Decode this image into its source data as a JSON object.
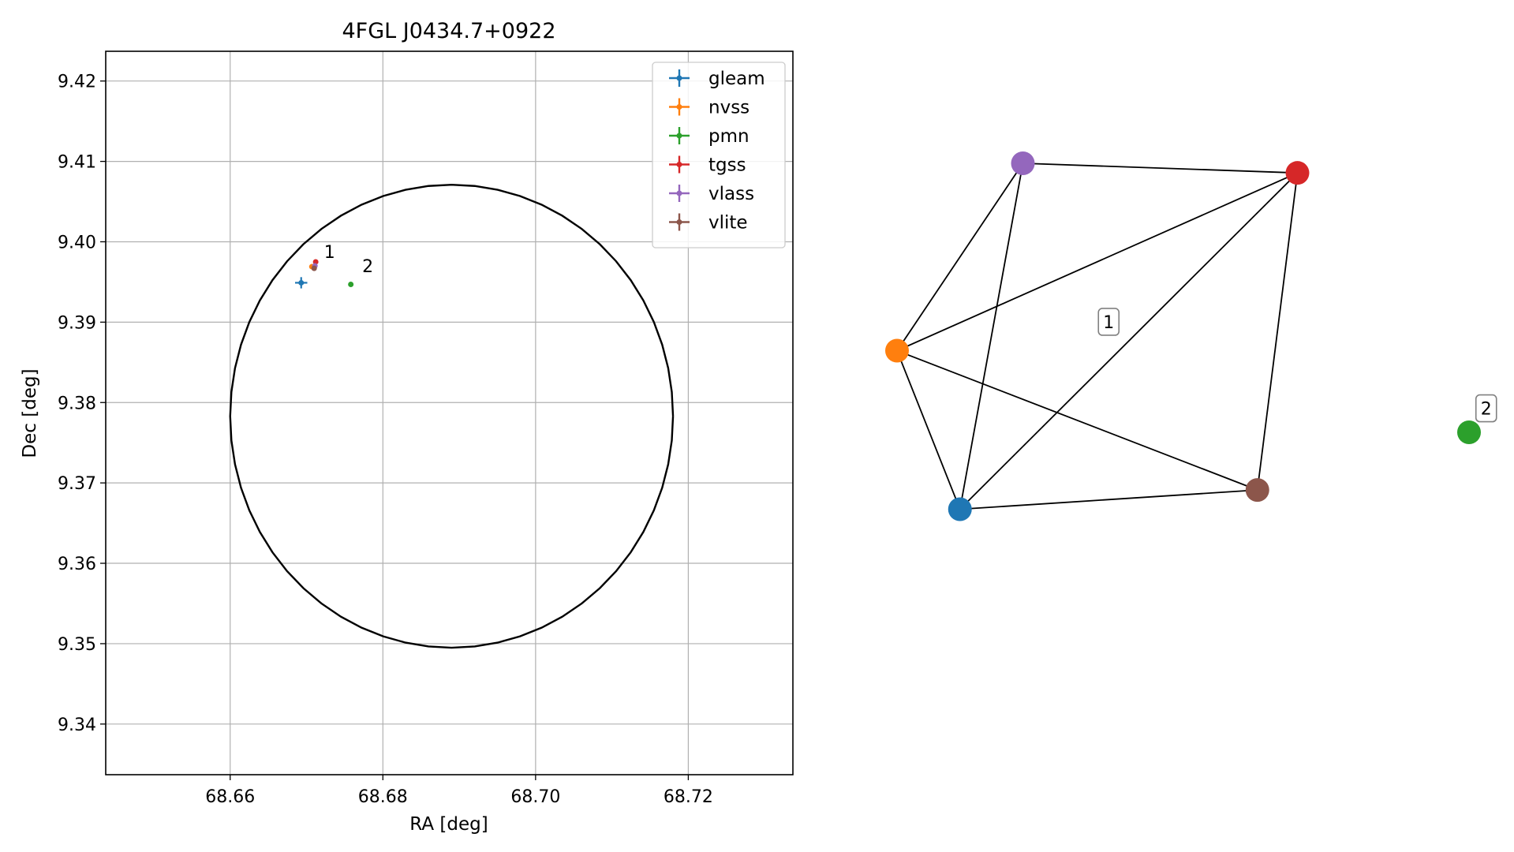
{
  "chart_data": [
    {
      "type": "scatter",
      "title": "4FGL J0434.7+0922",
      "xlabel": "RA [deg]",
      "ylabel": "Dec [deg]",
      "xlim": [
        68.6437,
        68.7337
      ],
      "ylim": [
        9.3337,
        9.4237
      ],
      "xticks": [
        68.66,
        68.68,
        68.7,
        68.72
      ],
      "yticks": [
        9.34,
        9.35,
        9.36,
        9.37,
        9.38,
        9.39,
        9.4,
        9.41,
        9.42
      ],
      "xtick_labels": [
        "68.66",
        "68.68",
        "68.70",
        "68.72"
      ],
      "ytick_labels": [
        "9.34",
        "9.35",
        "9.36",
        "9.37",
        "9.38",
        "9.39",
        "9.40",
        "9.41",
        "9.42"
      ],
      "grid": true,
      "legend_position": "upper right",
      "error_ellipse": {
        "ra_center": 68.689,
        "dec_center": 9.3783,
        "ra_semi": 0.029,
        "dec_semi": 0.0288,
        "color": "#000000"
      },
      "series": [
        {
          "name": "gleam",
          "color": "#1f77b4",
          "ra": 68.6693,
          "dec": 9.3949,
          "ra_err": 0.0008,
          "dec_err": 0.0007
        },
        {
          "name": "nvss",
          "color": "#ff7f0e",
          "ra": 68.6707,
          "dec": 9.3969,
          "ra_err": 0.0001,
          "dec_err": 0.0001
        },
        {
          "name": "pmn",
          "color": "#2ca02c",
          "ra": 68.6758,
          "dec": 9.3947,
          "ra_err": 0.0002,
          "dec_err": 0.0002
        },
        {
          "name": "tgss",
          "color": "#d62728",
          "ra": 68.6712,
          "dec": 9.3975,
          "ra_err": 0.0003,
          "dec_err": 0.0003
        },
        {
          "name": "vlass",
          "color": "#9467bd",
          "ra": 68.6711,
          "dec": 9.397,
          "ra_err": 0.0001,
          "dec_err": 0.0001
        },
        {
          "name": "vlite",
          "color": "#8c564b",
          "ra": 68.671,
          "dec": 9.3967,
          "ra_err": 0.0003,
          "dec_err": 0.0003
        }
      ],
      "annotations": [
        {
          "text": "1",
          "ra": 68.6723,
          "dec": 9.398
        },
        {
          "text": "2",
          "ra": 68.6773,
          "dec": 9.3962
        }
      ]
    },
    {
      "type": "network",
      "nodes": [
        {
          "id": "gleam",
          "color": "#1f77b4",
          "x": 0.11,
          "y": 0.28
        },
        {
          "id": "nvss",
          "color": "#ff7f0e",
          "x": 0.0,
          "y": 0.61
        },
        {
          "id": "pmn",
          "color": "#2ca02c",
          "x": 1.0,
          "y": 0.44
        },
        {
          "id": "tgss",
          "color": "#d62728",
          "x": 0.7,
          "y": 0.98
        },
        {
          "id": "vlass",
          "color": "#9467bd",
          "x": 0.22,
          "y": 1.0
        },
        {
          "id": "vlite",
          "color": "#8c564b",
          "x": 0.63,
          "y": 0.32
        }
      ],
      "edges": [
        [
          "vlass",
          "tgss"
        ],
        [
          "vlass",
          "nvss"
        ],
        [
          "vlass",
          "gleam"
        ],
        [
          "tgss",
          "nvss"
        ],
        [
          "tgss",
          "gleam"
        ],
        [
          "tgss",
          "vlite"
        ],
        [
          "nvss",
          "gleam"
        ],
        [
          "nvss",
          "vlite"
        ],
        [
          "gleam",
          "vlite"
        ]
      ],
      "clusters": [
        {
          "label": "1",
          "x": 0.37,
          "y": 0.67
        },
        {
          "label": "2",
          "x": 1.03,
          "y": 0.49
        }
      ]
    }
  ]
}
